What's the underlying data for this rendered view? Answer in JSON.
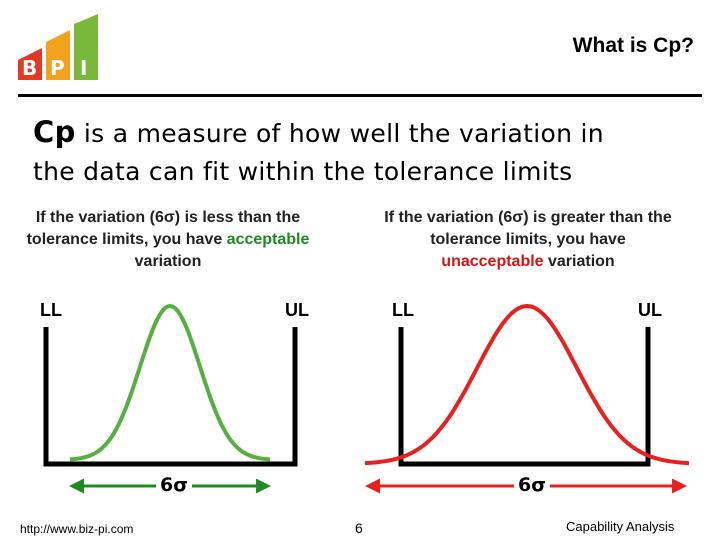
{
  "header": {
    "logo_text": "BPI",
    "title": "What is Cp?"
  },
  "headline": {
    "term": "Cp",
    "line1_rest": " is a measure of how well the variation in",
    "line2": "the data can fit within the tolerance limits"
  },
  "left_panel": {
    "text_before": "If the variation (6σ) is less than the tolerance limits, you have ",
    "highlight": "acceptable",
    "text_after": " variation",
    "ll_label": "LL",
    "ul_label": "UL",
    "sigma_label": "6σ",
    "curve_color": "#55b040",
    "arrow_color": "#1f8a1f"
  },
  "right_panel": {
    "text_before": "If the variation (6σ) is greater than the tolerance limits, you have ",
    "highlight": "unacceptable",
    "text_after": " variation",
    "ll_label": "LL",
    "ul_label": "UL",
    "sigma_label": "6σ",
    "curve_color": "#e82020",
    "arrow_color": "#e82020"
  },
  "footer": {
    "url": "http://www.biz-pi.com",
    "page_number": "6",
    "topic": "Capability Analysis"
  }
}
